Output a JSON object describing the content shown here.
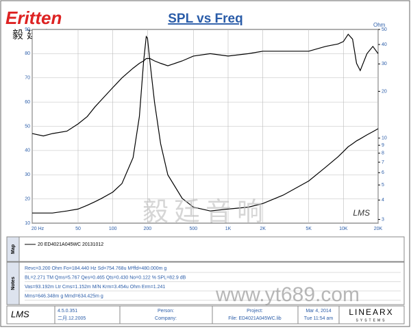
{
  "header": {
    "logo": "Eritten",
    "logo_cn": "毅廷音响"
  },
  "chart_data": {
    "type": "line",
    "title": "SPL vs Freq",
    "y2_label": "Ohm",
    "watermark": "LMS",
    "xlog": true,
    "y2log": true,
    "grid": true,
    "x": [
      20,
      25,
      30,
      40,
      50,
      60,
      70,
      80,
      100,
      120,
      150,
      170,
      185,
      195,
      200,
      210,
      230,
      260,
      300,
      400,
      500,
      700,
      1000,
      1500,
      2000,
      3000,
      5000,
      7000,
      9000,
      10000,
      11000,
      12000,
      13000,
      14000,
      16000,
      18000,
      20000
    ],
    "xlim": [
      20,
      20000
    ],
    "xticks": [
      {
        "value": 20,
        "label": "20 Hz"
      },
      50,
      100,
      200,
      500,
      {
        "value": 1000,
        "label": "1K"
      },
      {
        "value": 2000,
        "label": "2K"
      },
      {
        "value": 5000,
        "label": "5K"
      },
      {
        "value": 10000,
        "label": "10K"
      },
      {
        "value": 20000,
        "label": "20K"
      }
    ],
    "ylim": [
      10,
      90
    ],
    "yticks": [
      10,
      20,
      30,
      40,
      50,
      60,
      70,
      80,
      90
    ],
    "y2lim": [
      2.84,
      50
    ],
    "y2ticks": [
      3,
      4,
      5,
      6,
      7,
      8,
      9,
      10,
      20,
      30,
      40,
      50
    ],
    "series": [
      {
        "name": "20  ED4021A045WC  20131012",
        "color": "#000000",
        "values": [
          47,
          46,
          47,
          48,
          51,
          54,
          58,
          61,
          66,
          70,
          74,
          76,
          77,
          78,
          78,
          78,
          77,
          76,
          75,
          77,
          79,
          80,
          79,
          80,
          81,
          81,
          81,
          83,
          84,
          85,
          88,
          86,
          76,
          73,
          80,
          83,
          80
        ]
      },
      {
        "color": "#000000",
        "axis": "y2",
        "values": [
          3.3,
          3.3,
          3.3,
          3.4,
          3.5,
          3.7,
          3.9,
          4.1,
          4.5,
          5.1,
          7.5,
          13.8,
          31,
          45,
          44,
          31,
          17,
          9.2,
          5.8,
          4.1,
          3.6,
          3.4,
          3.5,
          3.6,
          3.8,
          4.3,
          5.3,
          6.5,
          7.6,
          8.2,
          8.8,
          9.2,
          9.6,
          9.9,
          10.5,
          11,
          11.5
        ]
      }
    ]
  },
  "panels": {
    "map": "Map",
    "notes": "Notes",
    "notes_lines": [
      "Revc=3.200 Ohm  Fo=184.440 Hz  Sd=754.768u M²ffd=480.000m g",
      "BL=2.271 TM  Qms=5.767  Qes=0.465  Qts=0.430  No=0.122 %  SPL=82.9 dB",
      "Vas=93.192m Ltr  Cms=1.152m M/N  Krm=3.454u Ohm  Erm=1.241",
      "Mms=646.348m g  Mmd=634.425m g"
    ]
  },
  "footer": {
    "app": "LMS",
    "version": "4.5.0.351",
    "date_built": "二月.12.2005",
    "person": "Person:",
    "company": "Company:",
    "project": "Project:",
    "file": "File: ED4021A045WC.lib",
    "date": "Mar 4, 2014",
    "time": "Tue 11:54 am",
    "brand": "LINEARX",
    "brand_sub": "SYSTEMS"
  },
  "watermarks": {
    "cn": "毅廷音响",
    "url": "www.yt689.com"
  }
}
